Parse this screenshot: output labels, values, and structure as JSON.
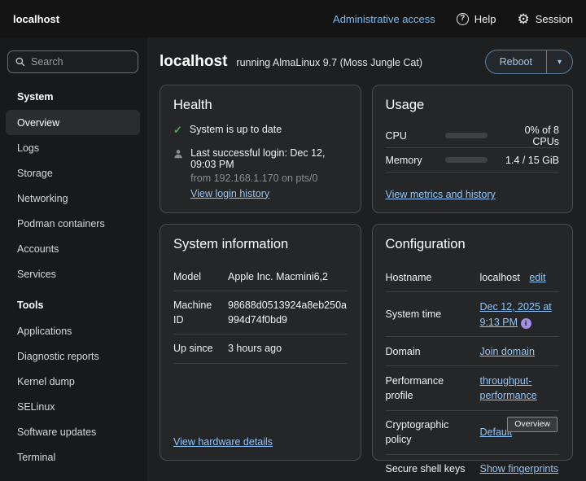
{
  "colors": {
    "link": "#92c5f9",
    "admin_link": "#73bcf7",
    "success_green": "#4bb04b",
    "info_purple": "#a18fe3",
    "progress_blue": "#4d9de9"
  },
  "masthead": {
    "brand": "localhost",
    "admin_access": "Administrative access",
    "help_label": "Help",
    "help_glyph": "?",
    "session_label": "Session",
    "gear_glyph": "⚙"
  },
  "sidebar": {
    "search_placeholder": "Search",
    "selected_item": "Overview",
    "sections": [
      {
        "heading": "System",
        "items": [
          "Overview",
          "Logs",
          "Storage",
          "Networking",
          "Podman containers",
          "Accounts",
          "Services"
        ]
      },
      {
        "heading": "Tools",
        "items": [
          "Applications",
          "Diagnostic reports",
          "Kernel dump",
          "SELinux",
          "Software updates",
          "Terminal"
        ]
      }
    ]
  },
  "page_header": {
    "hostname": "localhost",
    "subtitle": "running AlmaLinux 9.7 (Moss Jungle Cat)",
    "reboot_label": "Reboot",
    "caret_glyph": "▾"
  },
  "cards": {
    "health": {
      "title": "Health",
      "check_glyph": "✓",
      "update_status": "System is up to date",
      "last_login": "Last successful login: Dec 12, 09:03 PM",
      "last_login_from": "from 192.168.1.170 on pts/0",
      "login_history_link": "View login history"
    },
    "usage": {
      "title": "Usage",
      "rows": [
        {
          "label": "CPU",
          "value": "0% of 8 CPUs",
          "percent": 0
        },
        {
          "label": "Memory",
          "value": "1.4 / 15 GiB",
          "percent": 12
        }
      ],
      "metrics_link": "View metrics and history"
    },
    "system_information": {
      "title": "System information",
      "rows": [
        {
          "label": "Model",
          "value": "Apple Inc. Macmini6,2"
        },
        {
          "label": "Machine ID",
          "value": "98688d0513924a8eb250a994d74f0bd9"
        },
        {
          "label": "Up since",
          "value": "3 hours ago"
        }
      ],
      "hardware_link": "View hardware details"
    },
    "configuration": {
      "title": "Configuration",
      "hostname_label": "Hostname",
      "hostname_value": "localhost",
      "hostname_edit": "edit",
      "system_time_label": "System time",
      "system_time_value": "Dec 12, 2025 at 9:13 PM",
      "info_glyph": "i",
      "domain_label": "Domain",
      "domain_value": "Join domain",
      "performance_label": "Performance profile",
      "performance_value": "throughput-performance",
      "crypto_label": "Cryptographic policy",
      "crypto_value": "Default",
      "ssh_label": "Secure shell keys",
      "ssh_value": "Show fingerprints",
      "tooltip": "Overview"
    }
  }
}
